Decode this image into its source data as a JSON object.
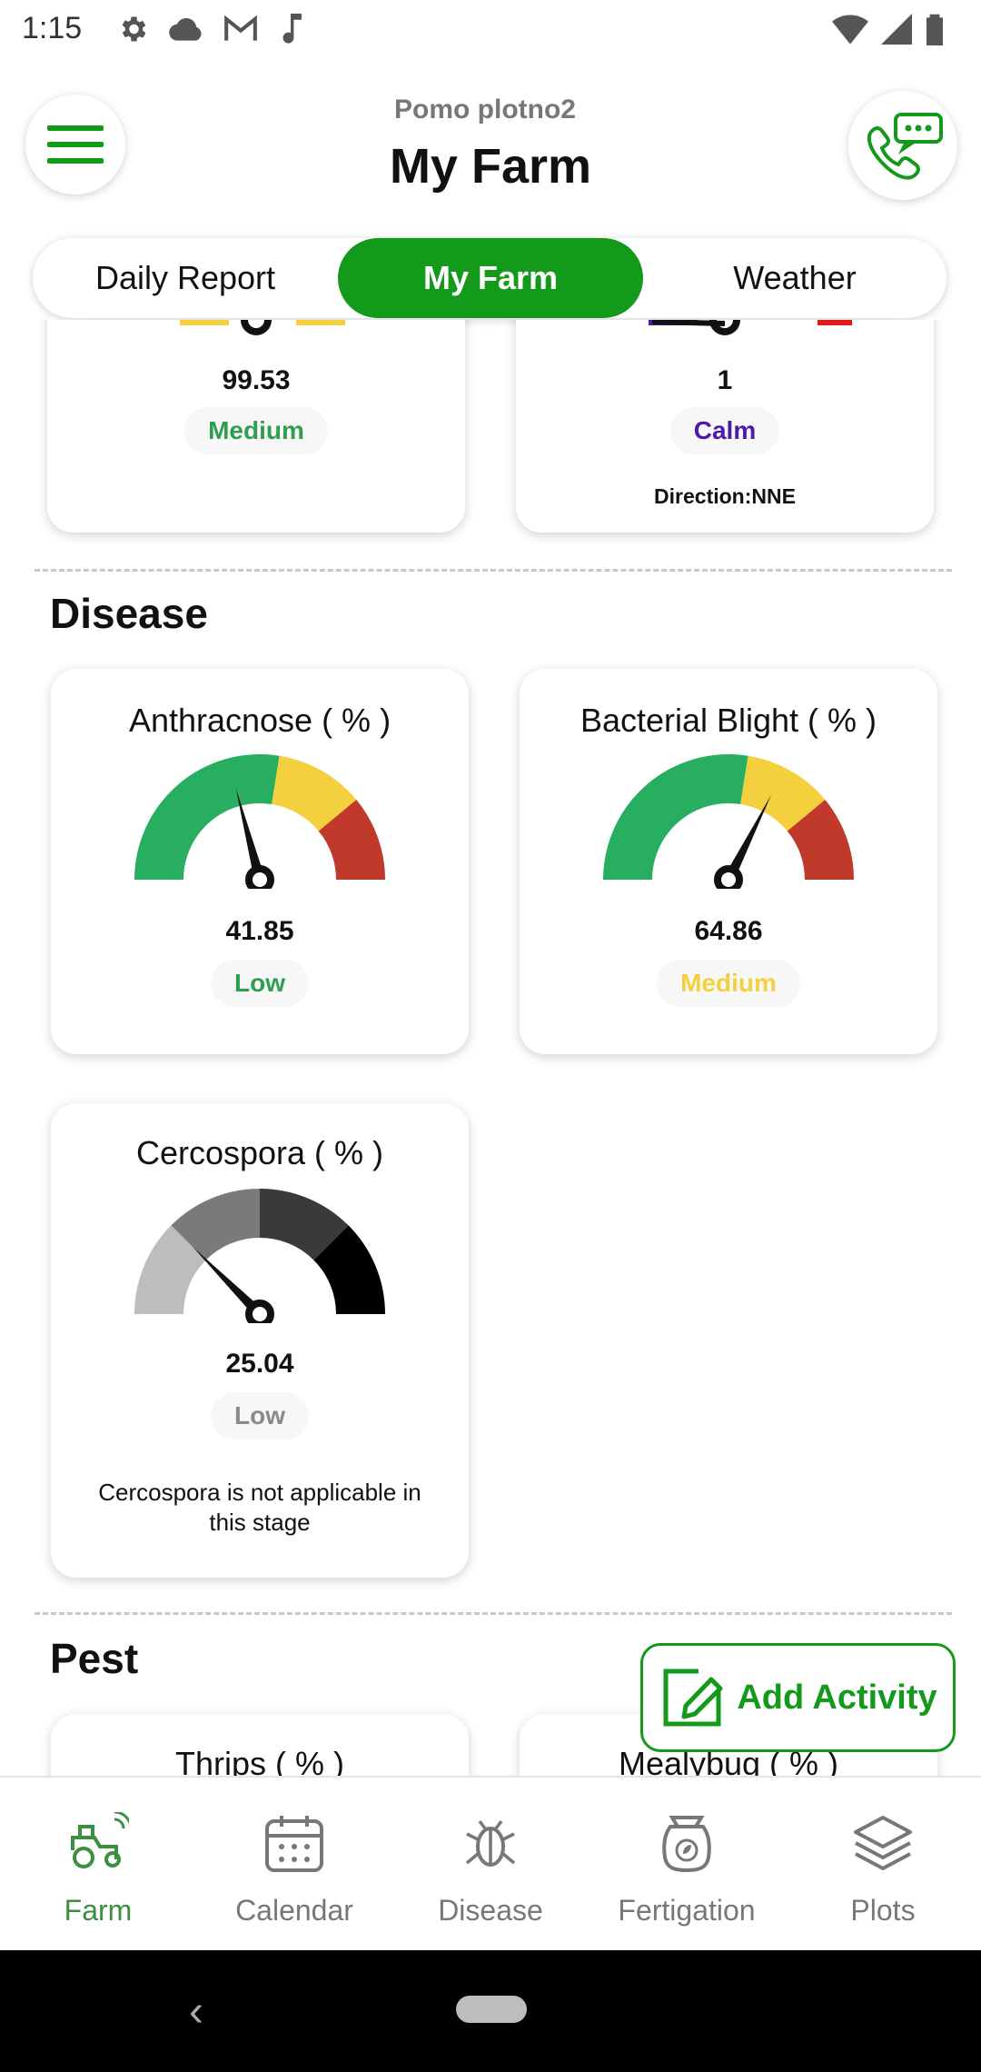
{
  "status_bar": {
    "time": "1:15"
  },
  "header": {
    "subtitle": "Pomo plotno2",
    "title": "My Farm"
  },
  "tabs": [
    {
      "label": "Daily Report",
      "active": false
    },
    {
      "label": "My Farm",
      "active": true
    },
    {
      "label": "Weather",
      "active": false
    }
  ],
  "top_cards": [
    {
      "value": "99.53",
      "level": "Medium",
      "level_color": "#2e9e4f"
    },
    {
      "value": "1",
      "level": "Calm",
      "level_color": "#4b1aa8",
      "note": "Direction:NNE"
    }
  ],
  "disease": {
    "title": "Disease",
    "cards": [
      {
        "title": "Anthracnose ( % )",
        "value": "41.85",
        "level": "Low",
        "level_color": "#2e9e4f",
        "gauge_value": 41.85,
        "colors": [
          "#27ae60",
          "#f4d03f",
          "#c0392b"
        ]
      },
      {
        "title": "Bacterial Blight ( % )",
        "value": "64.86",
        "level": "Medium",
        "level_color": "#f4d03f",
        "gauge_value": 64.86,
        "colors": [
          "#27ae60",
          "#f4d03f",
          "#c0392b"
        ]
      },
      {
        "title": "Cercospora ( % )",
        "value": "25.04",
        "level": "Low",
        "level_color": "#8a8a8a",
        "gauge_value": 25.04,
        "colors": [
          "#bdbdbd",
          "#7a7a7a",
          "#3a3a3a",
          "#000000"
        ],
        "note": "Cercospora is not applicable in this stage"
      }
    ]
  },
  "pest": {
    "title": "Pest",
    "cards": [
      {
        "title": "Thrips ( % )"
      },
      {
        "title": "Mealybug ( % )"
      }
    ]
  },
  "add_activity": {
    "label": "Add Activity"
  },
  "bottom_nav": [
    {
      "label": "Farm",
      "icon": "tractor-icon",
      "active": true
    },
    {
      "label": "Calendar",
      "icon": "calendar-icon",
      "active": false
    },
    {
      "label": "Disease",
      "icon": "bug-icon",
      "active": false
    },
    {
      "label": "Fertigation",
      "icon": "fertilizer-bag-icon",
      "active": false
    },
    {
      "label": "Plots",
      "icon": "layers-icon",
      "active": false
    }
  ],
  "colors": {
    "brand_green": "#139a1a",
    "gauge_green": "#27ae60",
    "gauge_yellow": "#f4d03f",
    "gauge_red": "#c0392b"
  }
}
